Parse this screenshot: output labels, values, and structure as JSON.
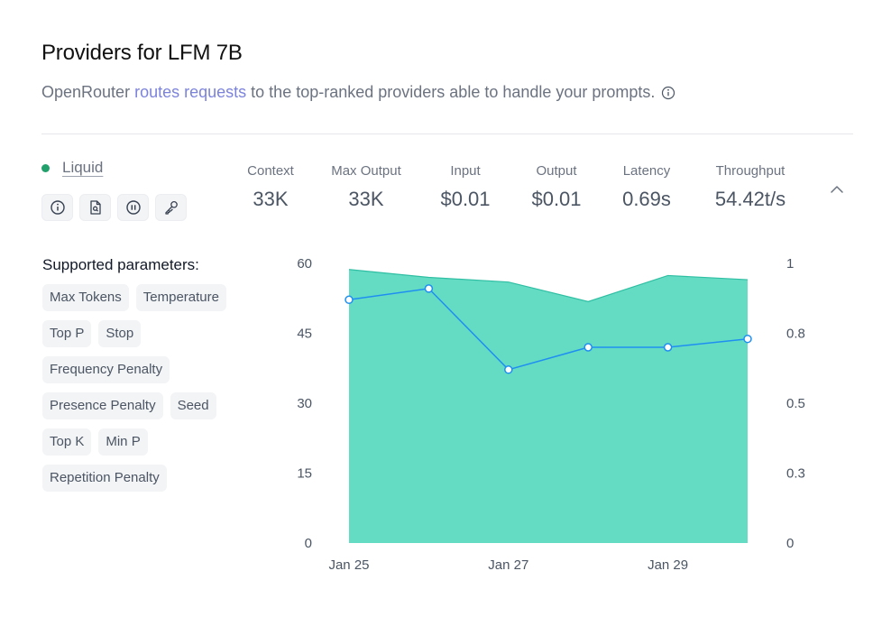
{
  "header": {
    "title": "Providers for LFM 7B",
    "subtitle_prefix": "OpenRouter",
    "subtitle_link": "routes requests",
    "subtitle_suffix": "to the top-ranked providers able to handle your prompts."
  },
  "provider": {
    "name": "Liquid",
    "status_color": "#22a06b",
    "icons": [
      "info-icon",
      "document-search-icon",
      "pause-icon",
      "key-icon"
    ]
  },
  "stats": [
    {
      "label": "Context",
      "value": "33K"
    },
    {
      "label": "Max Output",
      "value": "33K"
    },
    {
      "label": "Input",
      "value": "$0.01"
    },
    {
      "label": "Output",
      "value": "$0.01"
    },
    {
      "label": "Latency",
      "value": "0.69s"
    },
    {
      "label": "Throughput",
      "value": "54.42t/s"
    }
  ],
  "parameters": {
    "title": "Supported parameters:",
    "rows": [
      [
        "Max Tokens",
        "Temperature"
      ],
      [
        "Top P",
        "Stop"
      ],
      [
        "Frequency Penalty"
      ],
      [
        "Presence Penalty",
        "Seed"
      ],
      [
        "Top K",
        "Min P"
      ],
      [
        "Repetition Penalty"
      ]
    ]
  },
  "chart_data": {
    "type": "area",
    "x_ticks": [
      "Jan 25",
      "Jan 27",
      "Jan 29"
    ],
    "left_axis": {
      "ticks": [
        "0",
        "15",
        "30",
        "45",
        "60"
      ],
      "range": [
        0,
        60
      ]
    },
    "right_axis": {
      "ticks": [
        "0",
        "0.3",
        "0.5",
        "0.8",
        "1"
      ],
      "range": [
        0,
        1
      ]
    },
    "series": [
      {
        "type": "area",
        "axis": "left",
        "color": "#64dcc4",
        "stroke": "#2fbfa3",
        "values": [
          58.7,
          57.0,
          56.0,
          51.8,
          57.4,
          56.5
        ]
      },
      {
        "type": "line",
        "axis": "right",
        "color": "#1f8ef1",
        "values": [
          0.87,
          0.91,
          0.62,
          0.7,
          0.7,
          0.73
        ]
      }
    ],
    "x_index_labels": {
      "0": "Jan 25",
      "2": "Jan 27",
      "4": "Jan 29"
    }
  }
}
